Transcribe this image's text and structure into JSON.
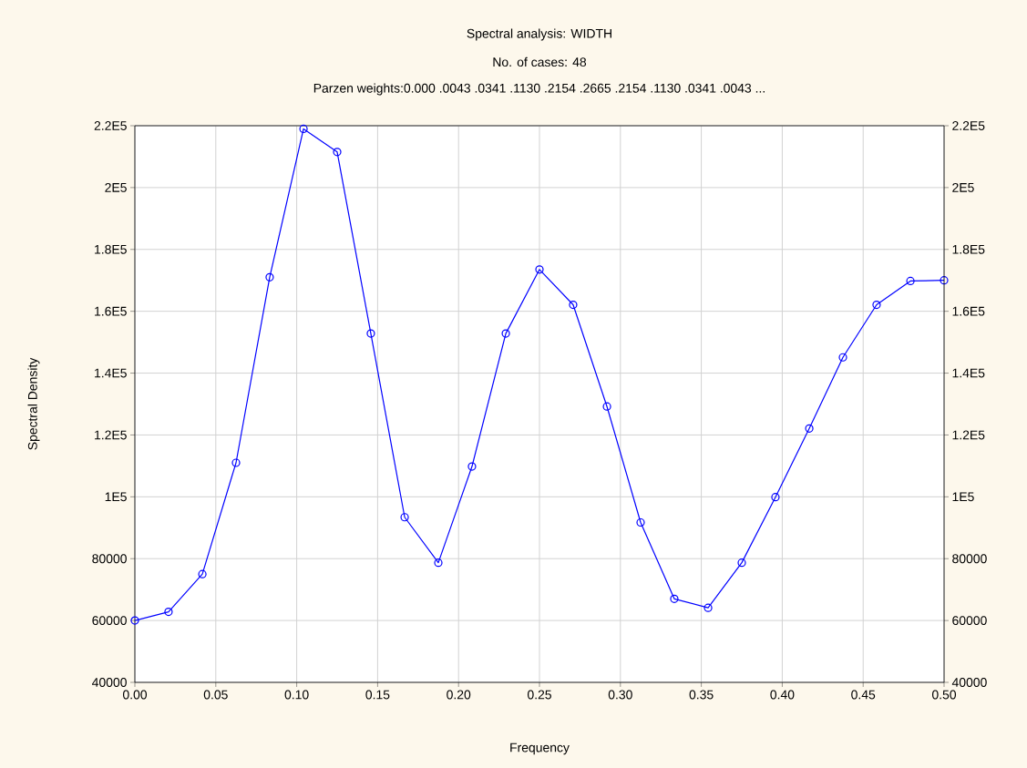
{
  "chart_data": {
    "type": "line",
    "title": "Spectral analysis: WIDTH",
    "subtitle": "No. of cases: 48",
    "annotations": [
      "Parzen weights:0.000 .0043 .0341 .1130 .2154 .2665 .2154 .1130 .0341 .0043  ..."
    ],
    "xlabel": "Frequency",
    "ylabel": "Spectral Density",
    "x": [
      0,
      0.0208,
      0.0417,
      0.0625,
      0.0833,
      0.1042,
      0.125,
      0.1458,
      0.1667,
      0.1875,
      0.2083,
      0.2292,
      0.25,
      0.2708,
      0.2917,
      0.3125,
      0.3333,
      0.3542,
      0.375,
      0.3958,
      0.4167,
      0.4375,
      0.4583,
      0.4792,
      0.5
    ],
    "series": [
      {
        "color": "#0000ff",
        "values": [
          60000,
          62800,
          75000,
          111000,
          171000,
          219000,
          211500,
          152800,
          93400,
          78700,
          109800,
          152800,
          173500,
          162100,
          129200,
          91700,
          67000,
          64100,
          78700,
          99900,
          122100,
          145100,
          162100,
          169800,
          170000
        ]
      }
    ],
    "xlim": [
      0,
      0.5
    ],
    "xticks": [
      {
        "value": 0,
        "label": "0.00"
      },
      {
        "value": 0.05,
        "label": "0.05"
      },
      {
        "value": 0.1,
        "label": "0.10"
      },
      {
        "value": 0.15,
        "label": "0.15"
      },
      {
        "value": 0.2,
        "label": "0.20"
      },
      {
        "value": 0.25,
        "label": "0.25"
      },
      {
        "value": 0.3,
        "label": "0.30"
      },
      {
        "value": 0.35,
        "label": "0.35"
      },
      {
        "value": 0.4,
        "label": "0.40"
      },
      {
        "value": 0.45,
        "label": "0.45"
      },
      {
        "value": 0.5,
        "label": "0.50"
      }
    ],
    "ylim": [
      40000,
      220000
    ],
    "yticks": [
      40000,
      60000,
      80000,
      {
        "value": 100000,
        "label": "1E5"
      },
      {
        "value": 120000,
        "label": "1.2E5"
      },
      {
        "value": 140000,
        "label": "1.4E5"
      },
      {
        "value": 160000,
        "label": "1.6E5"
      },
      {
        "value": 180000,
        "label": "1.8E5"
      },
      {
        "value": 200000,
        "label": "2E5"
      },
      {
        "value": 220000,
        "label": "2.2E5"
      }
    ],
    "y2lim": [
      40000,
      220000
    ],
    "y2ticks": [
      40000,
      60000,
      80000,
      {
        "value": 100000,
        "label": "1E5"
      },
      {
        "value": 120000,
        "label": "1.2E5"
      },
      {
        "value": 140000,
        "label": "1.4E5"
      },
      {
        "value": 160000,
        "label": "1.6E5"
      },
      {
        "value": 180000,
        "label": "1.8E5"
      },
      {
        "value": 200000,
        "label": "2E5"
      },
      {
        "value": 220000,
        "label": "2.2E5"
      }
    ],
    "grid": true,
    "marker": "circle",
    "line_style": "solid"
  }
}
